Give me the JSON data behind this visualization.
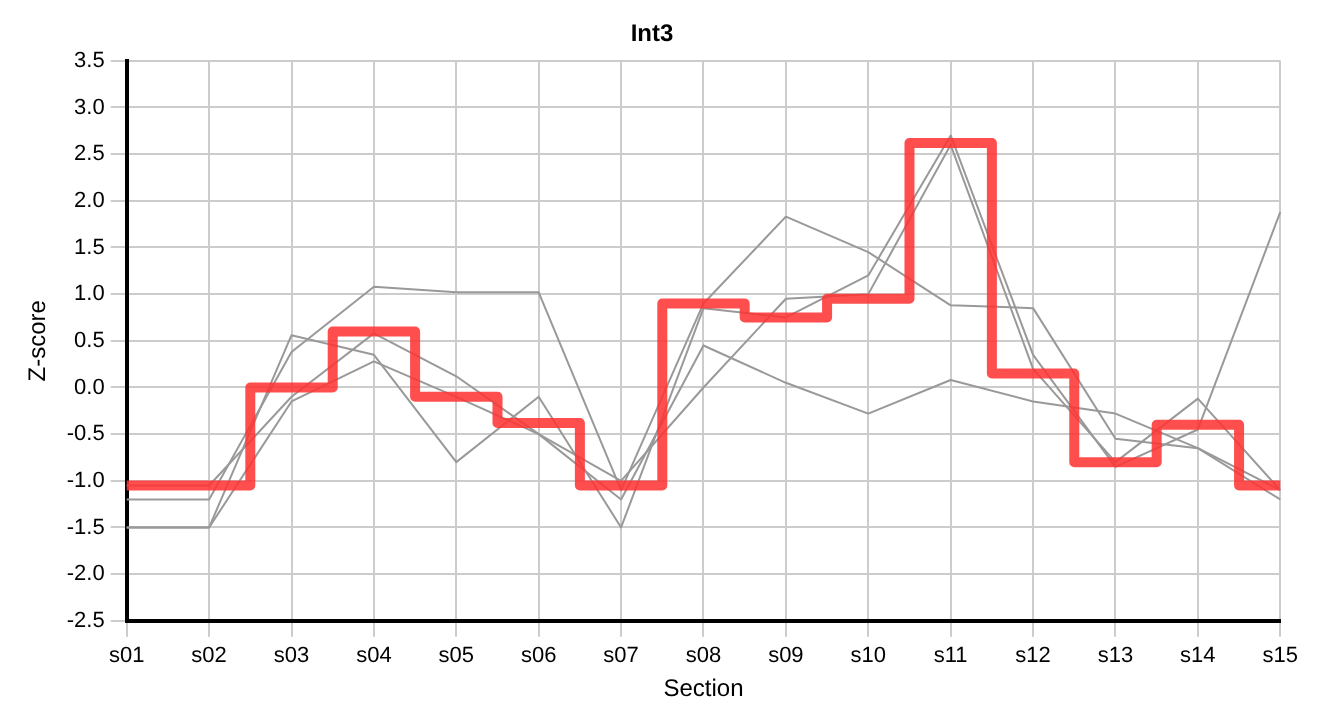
{
  "chart_data": {
    "type": "line",
    "title": "Int3",
    "xlabel": "Section",
    "ylabel": "Z-score",
    "categories": [
      "s01",
      "s02",
      "s03",
      "s04",
      "s05",
      "s06",
      "s07",
      "s08",
      "s09",
      "s10",
      "s11",
      "s12",
      "s13",
      "s14",
      "s15"
    ],
    "series": [
      {
        "color": "#999999",
        "values": [
          -1.2,
          -1.2,
          0.38,
          1.08,
          1.02,
          1.02,
          -1.1,
          0.9,
          1.83,
          1.45,
          0.88,
          0.85,
          -0.55,
          -0.65,
          -1.1
        ]
      },
      {
        "color": "#999999",
        "values": [
          -1.5,
          -1.5,
          0.56,
          0.35,
          -0.8,
          -0.1,
          -1.5,
          0.85,
          0.75,
          1.2,
          2.7,
          0.35,
          -0.85,
          -0.45,
          1.88
        ]
      },
      {
        "color": "#999999",
        "values": [
          -1.05,
          -1.05,
          -0.1,
          0.58,
          0.12,
          -0.5,
          -1.2,
          0.45,
          0.05,
          -0.28,
          0.08,
          -0.15,
          -0.28,
          -0.65,
          -1.2
        ]
      },
      {
        "color": "#999999",
        "values": [
          -1.5,
          -1.5,
          -0.15,
          0.28,
          -0.1,
          -0.5,
          -1.0,
          0.0,
          0.95,
          1.0,
          2.6,
          0.2,
          -0.8,
          -0.12,
          -1.1
        ]
      },
      {
        "type": "step",
        "color": "#ff3333",
        "values": [
          -1.05,
          -1.05,
          0.0,
          0.6,
          -0.1,
          -0.38,
          -1.05,
          0.9,
          0.75,
          0.95,
          2.62,
          0.15,
          -0.8,
          -0.4,
          -1.05
        ]
      }
    ],
    "ylim": [
      -2.5,
      3.5
    ],
    "yticks": [
      -2.5,
      {
        "value": -2,
        "label": "-2.0"
      },
      -1.5,
      {
        "value": -1,
        "label": "-1.0"
      },
      -0.5,
      {
        "value": 0,
        "label": "0.0"
      },
      0.5,
      {
        "value": 1,
        "label": "1.0"
      },
      1.5,
      {
        "value": 2,
        "label": "2.0"
      },
      2.5,
      {
        "value": 3,
        "label": "3.0"
      },
      3.5
    ],
    "grid": true,
    "legend": false,
    "marker": "none"
  }
}
